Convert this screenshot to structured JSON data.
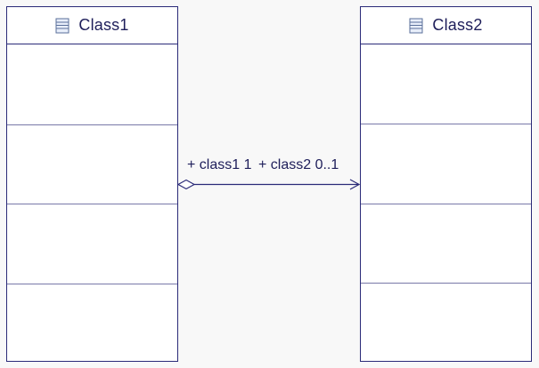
{
  "diagram": {
    "type": "uml-class-diagram",
    "colors": {
      "line": "#2a2a78",
      "text": "#1e1e5a",
      "divider": "#7878a8",
      "background": "#f8f8f8",
      "class_fill": "#ffffff"
    },
    "classes": [
      {
        "name": "Class1",
        "icon": "class-icon"
      },
      {
        "name": "Class2",
        "icon": "class-icon"
      }
    ],
    "association": {
      "kind": "aggregation",
      "source_end": "+ class1 1",
      "target_end": "+ class2 0..1"
    }
  }
}
